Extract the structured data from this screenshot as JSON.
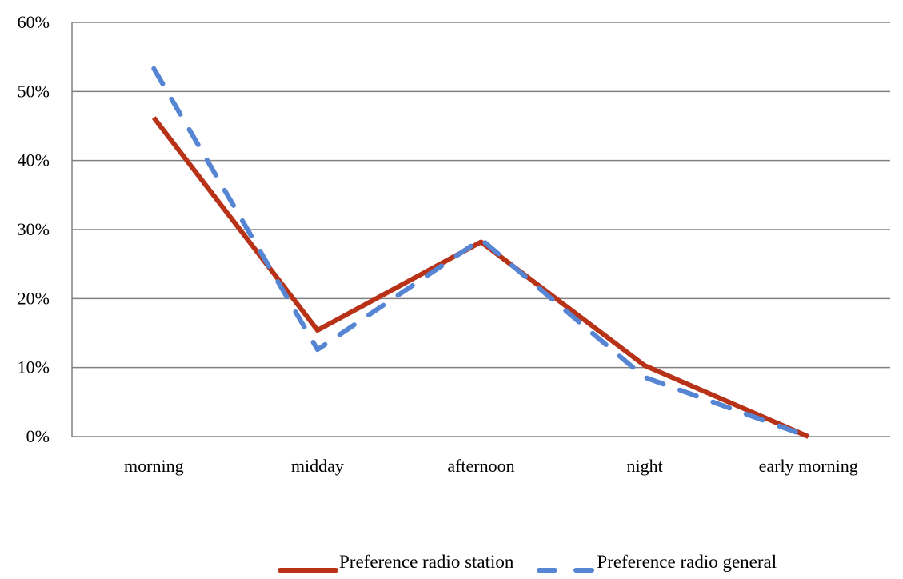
{
  "chart_data": {
    "type": "line",
    "categories": [
      "morning",
      "midday",
      "afternoon",
      "night",
      "early morning"
    ],
    "series": [
      {
        "name": "Preference radio station",
        "values": [
          46.2,
          15.4,
          28.2,
          10.3,
          0.0
        ],
        "color": "#b73217",
        "dash": "solid"
      },
      {
        "name": "Preference radio general",
        "values": [
          53.3,
          12.6,
          28.6,
          8.6,
          0.0
        ],
        "color": "#5585d3",
        "dash": "dashed"
      }
    ],
    "y_ticks": [
      "0%",
      "10%",
      "20%",
      "30%",
      "40%",
      "50%",
      "60%"
    ],
    "ylim": [
      0,
      60
    ],
    "grid": true,
    "legend_position": "bottom-right",
    "title": "",
    "xlabel": "",
    "ylabel": ""
  }
}
